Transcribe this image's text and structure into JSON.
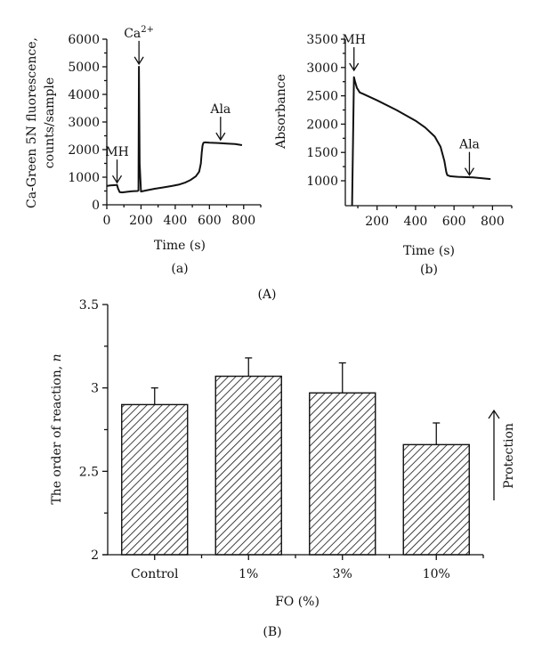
{
  "figure_labels": {
    "top": "(A)",
    "bottom": "(B)"
  },
  "chart_data": [
    {
      "id": "a",
      "type": "line",
      "panel_label": "(a)",
      "title": "",
      "xlabel": "Time (s)",
      "ylabel_lines": [
        "Ca-Green 5N fluorescence,",
        "counts/sample"
      ],
      "xlim": [
        0,
        900
      ],
      "ylim": [
        0,
        6000
      ],
      "xticks": [
        0,
        200,
        400,
        600,
        800
      ],
      "xtick_labels": [
        "0",
        "200",
        "400",
        "600",
        "800"
      ],
      "yticks": [
        0,
        1000,
        2000,
        3000,
        4000,
        5000,
        6000
      ],
      "ytick_labels": [
        "0",
        "1000",
        "2000",
        "3000",
        "4000",
        "5000",
        "6000"
      ],
      "grid": false,
      "series": [
        {
          "name": "Ca-Green 5N fluorescence",
          "x": [
            0,
            20,
            40,
            60,
            65,
            75,
            90,
            120,
            150,
            180,
            185,
            188,
            192,
            200,
            230,
            280,
            330,
            380,
            420,
            460,
            490,
            520,
            540,
            550,
            555,
            560,
            565,
            575,
            600,
            650,
            700,
            750,
            790
          ],
          "y": [
            680,
            700,
            710,
            720,
            600,
            460,
            450,
            470,
            490,
            500,
            520,
            5000,
            1500,
            480,
            520,
            580,
            630,
            680,
            730,
            810,
            900,
            1030,
            1200,
            1500,
            1900,
            2150,
            2250,
            2260,
            2250,
            2240,
            2220,
            2200,
            2160
          ]
        }
      ],
      "annotations": [
        {
          "text": "MH",
          "x": 60,
          "arrow_tip_y": 800
        },
        {
          "text": "Ca",
          "superscript": "2+",
          "x": 188,
          "arrow_tip_y": 5100
        },
        {
          "text": "Ala",
          "x": 665,
          "arrow_tip_y": 2350
        }
      ]
    },
    {
      "id": "b",
      "type": "line",
      "panel_label": "(b)",
      "title": "",
      "xlabel": "Time (s)",
      "ylabel": "Absorbance",
      "xlim": [
        35,
        900
      ],
      "ylim": [
        560,
        3500
      ],
      "xticks": [
        200,
        400,
        600,
        800
      ],
      "xtick_labels": [
        "200",
        "400",
        "600",
        "800"
      ],
      "yticks": [
        1000,
        1500,
        2000,
        2500,
        3000,
        3500
      ],
      "ytick_labels": [
        "1000",
        "1500",
        "2000",
        "2500",
        "3000",
        "3500"
      ],
      "grid": false,
      "series": [
        {
          "name": "Absorbance",
          "x": [
            70,
            80,
            85,
            95,
            110,
            130,
            200,
            300,
            400,
            450,
            500,
            530,
            550,
            560,
            565,
            580,
            620,
            700,
            790
          ],
          "y": [
            560,
            2830,
            2760,
            2640,
            2560,
            2530,
            2420,
            2250,
            2060,
            1940,
            1780,
            1600,
            1350,
            1150,
            1100,
            1080,
            1070,
            1060,
            1030
          ]
        }
      ],
      "annotations": [
        {
          "text": "MH",
          "x": 80,
          "arrow_tip_y": 2950
        },
        {
          "text": "Ala",
          "x": 680,
          "arrow_tip_y": 1100
        }
      ]
    },
    {
      "id": "B",
      "type": "bar",
      "panel_label": "(B)",
      "title": "",
      "xlabel": "FO (%)",
      "ylabel": "The order of reaction, ",
      "ylabel_italic": "n",
      "categories": [
        "Control",
        "1%",
        "3%",
        "10%"
      ],
      "values": [
        2.9,
        3.07,
        2.97,
        2.66
      ],
      "errors": [
        0.1,
        0.11,
        0.18,
        0.13
      ],
      "ylim": [
        2,
        3.5
      ],
      "yticks": [
        2,
        2.5,
        3,
        3.5
      ],
      "ytick_labels": [
        "2",
        "2.5",
        "3",
        "3.5"
      ],
      "bar_fill": "diagonal-hatch",
      "grid": false,
      "side_annotation": {
        "text": "Protection",
        "direction": "up"
      }
    }
  ]
}
